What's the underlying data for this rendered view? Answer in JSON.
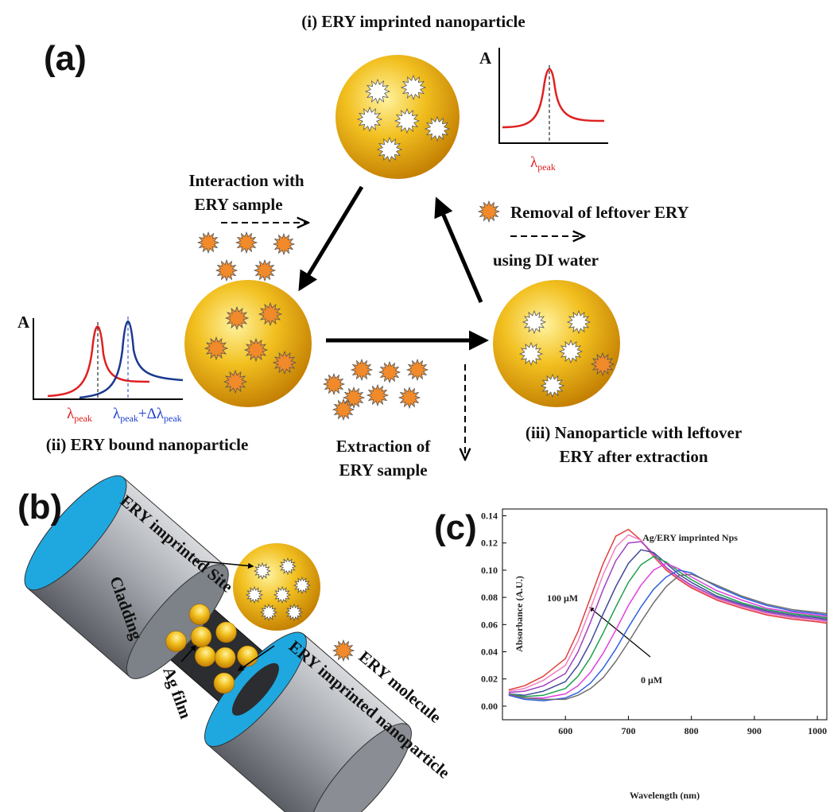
{
  "panel_a": {
    "label": "(a)",
    "state_i": "(i) ERY imprinted nanoparticle",
    "state_ii": "(ii) ERY bound nanoparticle",
    "state_iii": [
      "(iii) Nanoparticle with leftover",
      "ERY after extraction"
    ],
    "step_interaction": [
      "Interaction with",
      "ERY sample"
    ],
    "step_removal": [
      "Removal of leftover ERY",
      "using DI water"
    ],
    "step_extraction": [
      "Extraction of",
      "ERY sample"
    ],
    "spectrum_i": {
      "axis_label": "A",
      "peak_label": [
        "λ",
        "peak"
      ]
    },
    "spectrum_ii": {
      "axis_label": "A",
      "peak_label": [
        "λ",
        "peak"
      ],
      "shifted_label": [
        "λ",
        "peak",
        "+Δλ",
        "peak"
      ]
    }
  },
  "panel_b": {
    "label": "(b)",
    "cladding": "Cladding",
    "site": "ERY imprinted Site",
    "nanoparticle": "ERY imprinted nanoparticle",
    "molecule": "ERY molecule",
    "film": "Ag film"
  },
  "chart_data": {
    "type": "line",
    "label": "(c)",
    "title": "Ag/ERY imprinted Nps",
    "x_label": "Wavelength (nm)",
    "y_label": "Absorbance (A.U.)",
    "annotations": [
      "100 μM",
      "0 μM"
    ],
    "x": [
      510,
      535,
      565,
      600,
      620,
      640,
      660,
      680,
      700,
      720,
      740,
      760,
      780,
      800,
      840,
      880,
      920,
      960,
      1000,
      1015
    ],
    "xlim": [
      500,
      1015
    ],
    "xticks": [
      600,
      700,
      800,
      900,
      1000
    ],
    "ylim": [
      -0.01,
      0.145
    ],
    "yticks": [
      {
        "value": 0,
        "label": "0.00"
      },
      {
        "value": 0.02,
        "label": "0.02"
      },
      {
        "value": 0.04,
        "label": "0.04"
      },
      {
        "value": 0.06,
        "label": "0.06"
      },
      {
        "value": 0.08,
        "label": "0.08"
      },
      {
        "value": 0.1,
        "label": "0.10"
      },
      {
        "value": 0.12,
        "label": "0.12"
      },
      {
        "value": 0.14,
        "label": "0.14"
      }
    ],
    "series": [
      {
        "color": "#e0403c",
        "values": [
          0.012,
          0.015,
          0.022,
          0.035,
          0.055,
          0.08,
          0.105,
          0.125,
          0.13,
          0.122,
          0.11,
          0.1,
          0.093,
          0.087,
          0.078,
          0.072,
          0.067,
          0.064,
          0.062,
          0.061
        ]
      },
      {
        "color": "#f080c0",
        "values": [
          0.011,
          0.013,
          0.019,
          0.03,
          0.048,
          0.072,
          0.097,
          0.117,
          0.126,
          0.122,
          0.111,
          0.101,
          0.094,
          0.088,
          0.079,
          0.073,
          0.068,
          0.065,
          0.063,
          0.062
        ]
      },
      {
        "color": "#a040c0",
        "values": [
          0.01,
          0.011,
          0.015,
          0.024,
          0.04,
          0.062,
          0.086,
          0.107,
          0.12,
          0.121,
          0.112,
          0.102,
          0.095,
          0.089,
          0.08,
          0.074,
          0.069,
          0.066,
          0.064,
          0.063
        ]
      },
      {
        "color": "#404a9a",
        "values": [
          0.009,
          0.008,
          0.011,
          0.018,
          0.03,
          0.047,
          0.068,
          0.088,
          0.105,
          0.115,
          0.113,
          0.105,
          0.097,
          0.091,
          0.081,
          0.075,
          0.07,
          0.067,
          0.065,
          0.064
        ]
      },
      {
        "color": "#20a050",
        "values": [
          0.009,
          0.007,
          0.008,
          0.013,
          0.022,
          0.036,
          0.054,
          0.073,
          0.091,
          0.104,
          0.11,
          0.106,
          0.099,
          0.093,
          0.083,
          0.076,
          0.071,
          0.068,
          0.066,
          0.065
        ]
      },
      {
        "color": "#e040e0",
        "values": [
          0.008,
          0.006,
          0.006,
          0.009,
          0.015,
          0.025,
          0.039,
          0.056,
          0.074,
          0.089,
          0.1,
          0.105,
          0.101,
          0.095,
          0.085,
          0.078,
          0.072,
          0.069,
          0.067,
          0.066
        ]
      },
      {
        "color": "#3060e0",
        "values": [
          0.008,
          0.005,
          0.004,
          0.006,
          0.01,
          0.017,
          0.028,
          0.042,
          0.058,
          0.073,
          0.086,
          0.095,
          0.1,
          0.098,
          0.088,
          0.08,
          0.074,
          0.07,
          0.068,
          0.067
        ]
      },
      {
        "color": "#707070",
        "values": [
          0.009,
          0.006,
          0.005,
          0.005,
          0.008,
          0.013,
          0.021,
          0.033,
          0.047,
          0.062,
          0.076,
          0.088,
          0.096,
          0.097,
          0.089,
          0.081,
          0.075,
          0.071,
          0.069,
          0.068
        ]
      }
    ]
  }
}
